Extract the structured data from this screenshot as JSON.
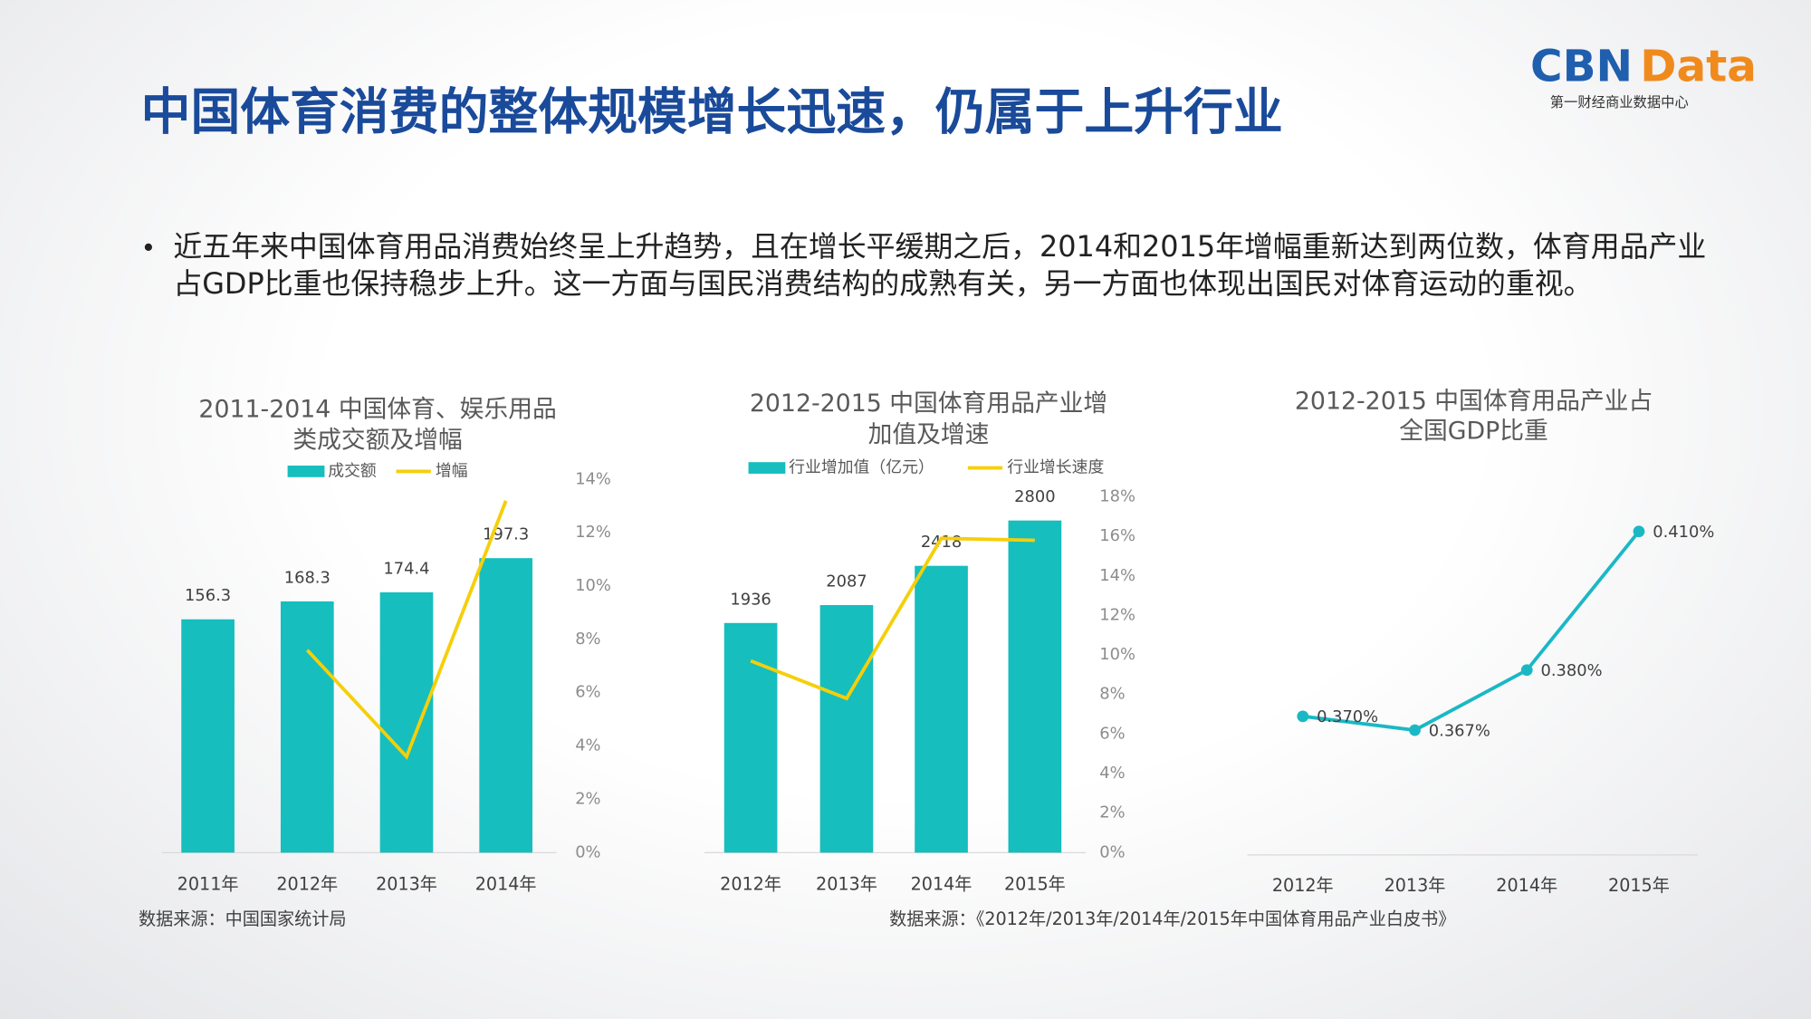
{
  "page": {
    "title": "中国体育消费的整体规模增长迅速，仍属于上升行业",
    "logo_main": "CBN",
    "logo_accent": "Data",
    "logo_sub": "第一财经商业数据中心",
    "bullet": "近五年来中国体育用品消费始终呈上升趋势，且在增长平缓期之后，2014和2015年增幅重新达到两位数，体育用品产业占GDP比重也保持稳步上升。这一方面与国民消费结构的成熟有关，另一方面也体现出国民对体育运动的重视。",
    "sources": [
      "数据来源：中国国家统计局",
      "数据来源：《2012年/2013年/2014年/2015年中国体育用品产业白皮书》"
    ]
  },
  "chart_data": [
    {
      "type": "bar",
      "title": [
        "2011-2014 中国体育、娱乐用品",
        "类成交额及增幅"
      ],
      "categories": [
        "2011年",
        "2012年",
        "2013年",
        "2014年"
      ],
      "ylim": [
        0,
        250
      ],
      "y2lim": [
        0,
        14
      ],
      "y2ticks": [
        {
          "value": 0,
          "label": "0%"
        },
        {
          "value": 2,
          "label": "2%"
        },
        {
          "value": 4,
          "label": "4%"
        },
        {
          "value": 6,
          "label": "6%"
        },
        {
          "value": 8,
          "label": "8%"
        },
        {
          "value": 10,
          "label": "10%"
        },
        {
          "value": 12,
          "label": "12%"
        },
        {
          "value": 14,
          "label": "14%"
        }
      ],
      "series": [
        {
          "name": "成交额",
          "type": "bar",
          "color": "#16bebe",
          "values": [
            156.3,
            168.3,
            174.4,
            197.3
          ]
        },
        {
          "name": "增幅",
          "type": "line",
          "axis": "y2",
          "color": "#f5cf0a",
          "values": [
            null,
            7.6,
            3.6,
            13.2
          ]
        }
      ]
    },
    {
      "type": "bar",
      "title": [
        "2012-2015 中国体育用品产业增",
        "加值及增速"
      ],
      "categories": [
        "2012年",
        "2013年",
        "2014年",
        "2015年"
      ],
      "ylim": [
        0,
        3000
      ],
      "y2lim": [
        0,
        18
      ],
      "y2ticks": [
        {
          "value": 0,
          "label": "0%"
        },
        {
          "value": 2,
          "label": "2%"
        },
        {
          "value": 4,
          "label": "4%"
        },
        {
          "value": 6,
          "label": "6%"
        },
        {
          "value": 8,
          "label": "8%"
        },
        {
          "value": 10,
          "label": "10%"
        },
        {
          "value": 12,
          "label": "12%"
        },
        {
          "value": 14,
          "label": "14%"
        },
        {
          "value": 16,
          "label": "16%"
        },
        {
          "value": 18,
          "label": "18%"
        }
      ],
      "series": [
        {
          "name": "行业增加值（亿元）",
          "type": "bar",
          "color": "#16bebe",
          "values": [
            1936,
            2087,
            2418,
            2800
          ]
        },
        {
          "name": "行业增长速度",
          "type": "line",
          "axis": "y2",
          "color": "#f5cf0a",
          "values": [
            9.7,
            7.8,
            15.9,
            15.8
          ]
        }
      ]
    },
    {
      "type": "line",
      "title": [
        "2012-2015 中国体育用品产业占",
        "全国GDP比重"
      ],
      "categories": [
        "2012年",
        "2013年",
        "2014年",
        "2015年"
      ],
      "ylim": [
        0.34,
        0.42
      ],
      "color": "#1ab8c4",
      "values": [
        0.37,
        0.367,
        0.38,
        0.41
      ],
      "value_labels": [
        "0.370%",
        "0.367%",
        "0.380%",
        "0.410%"
      ]
    }
  ]
}
